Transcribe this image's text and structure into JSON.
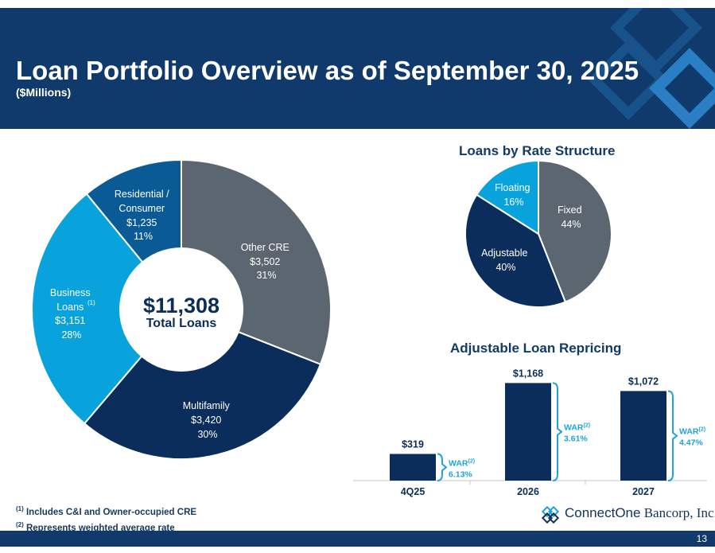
{
  "header": {
    "title": "Loan Portfolio Overview as of September 30, 2025",
    "subtitle": "($Millions)"
  },
  "colors": {
    "navy": "#0f3a6b",
    "dark_blue": "#0b2d5b",
    "mid_blue": "#0a5a96",
    "light_blue": "#08a3dd",
    "gray": "#5c6670",
    "accent_bracket": "#1fa3dc"
  },
  "chart_data": [
    {
      "type": "pie",
      "variant": "donut",
      "center_value": "$11,308",
      "center_label": "Total Loans",
      "slices": [
        {
          "name": "Other CRE",
          "value_label": "$3,502",
          "value": 3502,
          "pct_label": "31%",
          "color": "#5c6670"
        },
        {
          "name": "Multifamily",
          "value_label": "$3,420",
          "value": 3420,
          "pct_label": "30%",
          "color": "#0b2d5b"
        },
        {
          "name": "Business Loans",
          "footnote": "(1)",
          "value_label": "$3,151",
          "value": 3151,
          "pct_label": "28%",
          "color": "#08a3dd"
        },
        {
          "name": "Residential / Consumer",
          "value_label": "$1,235",
          "value": 1235,
          "pct_label": "11%",
          "color": "#0a5a96"
        }
      ]
    },
    {
      "type": "pie",
      "title": "Loans by Rate Structure",
      "slices": [
        {
          "name": "Fixed",
          "pct_label": "44%",
          "value": 44,
          "color": "#5c6670"
        },
        {
          "name": "Adjustable",
          "pct_label": "40%",
          "value": 40,
          "color": "#0b2d5b"
        },
        {
          "name": "Floating",
          "pct_label": "16%",
          "value": 16,
          "color": "#08a3dd"
        }
      ]
    },
    {
      "type": "bar",
      "title": "Adjustable Loan Repricing",
      "categories": [
        "4Q25",
        "2026",
        "2027"
      ],
      "values": [
        319,
        1168,
        1072
      ],
      "value_labels": [
        "$319",
        "$1,168",
        "$1,072"
      ],
      "war_label": "WAR",
      "war_footnote": "(2)",
      "war_values": [
        "6.13%",
        "3.61%",
        "4.47%"
      ],
      "ylim": [
        0,
        1200
      ],
      "color": "#0b2d5b"
    }
  ],
  "footnotes": [
    {
      "mark": "(1)",
      "text": "Includes C&I and Owner-occupied CRE"
    },
    {
      "mark": "(2)",
      "text": "Represents weighted average rate"
    }
  ],
  "logo": {
    "part1": "ConnectOne",
    "part2": "Bancorp, Inc."
  },
  "page_number": "13"
}
